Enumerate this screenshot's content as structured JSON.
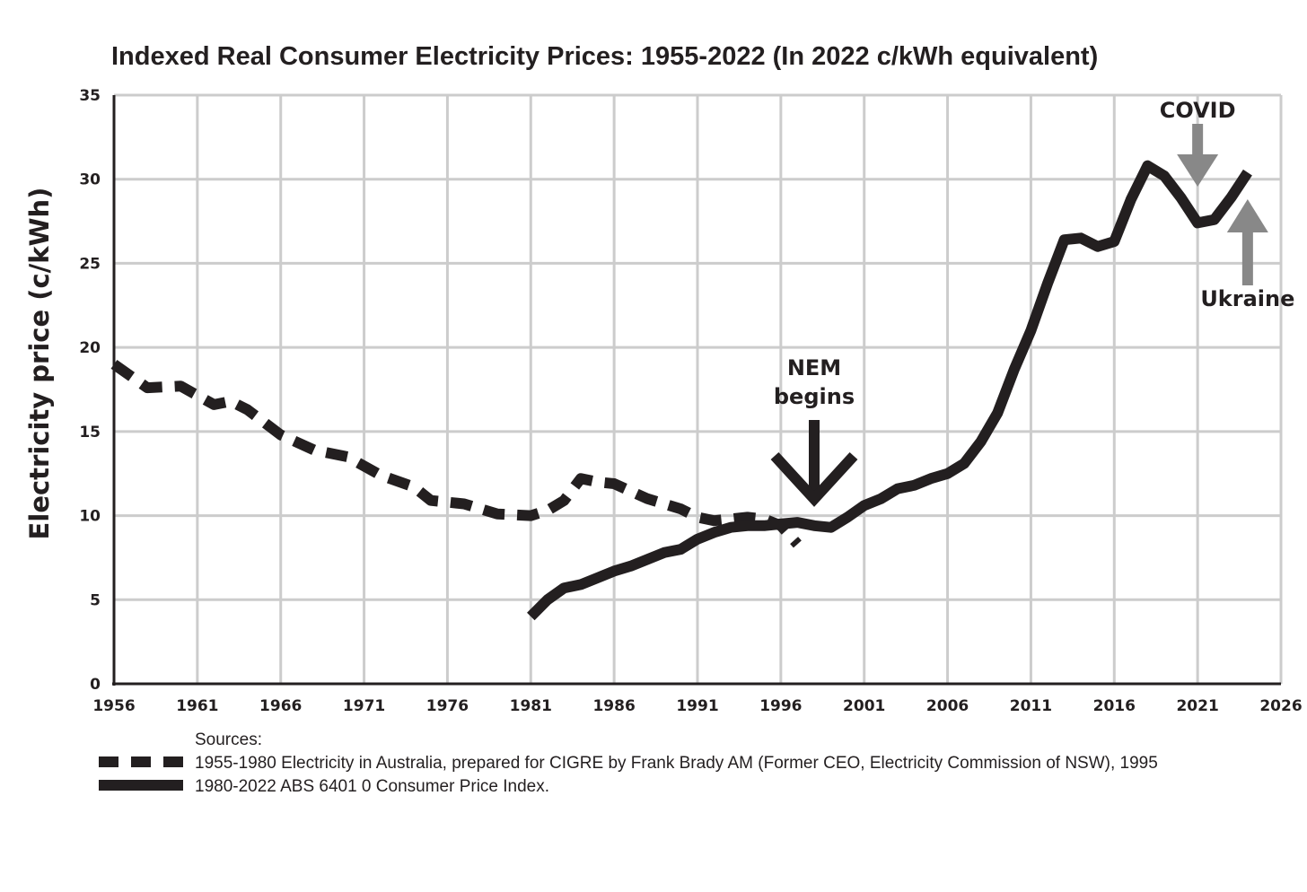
{
  "chart_data": {
    "type": "line",
    "title": "Indexed Real Consumer Electricity Prices: 1955-2022 (In 2022 c/kWh equivalent)",
    "ylabel": "Electricity price (c/kWh)",
    "xlabel": "",
    "xlim": [
      1956,
      2026
    ],
    "ylim": [
      0,
      35
    ],
    "x_ticks": [
      1956,
      1961,
      1966,
      1971,
      1976,
      1981,
      1986,
      1991,
      1996,
      2001,
      2006,
      2011,
      2016,
      2021,
      2026
    ],
    "y_ticks": [
      0,
      5,
      10,
      15,
      20,
      25,
      30,
      35
    ],
    "grid": true,
    "colors": {
      "line": "#231f20",
      "grid": "#cccccc",
      "arrow_gray": "#888888"
    },
    "series": [
      {
        "style": "dashed",
        "x": [
          1956,
          1958,
          1960,
          1962,
          1963,
          1964,
          1966,
          1968,
          1970,
          1972,
          1974,
          1975,
          1977,
          1979,
          1981,
          1982,
          1983,
          1984,
          1985,
          1986,
          1988,
          1990,
          1991,
          1992,
          1994,
          1995,
          1996,
          1997
        ],
        "y": [
          19,
          17.6,
          17.7,
          16.6,
          16.8,
          16.3,
          14.8,
          13.9,
          13.5,
          12.4,
          11.7,
          10.9,
          10.7,
          10.1,
          10.0,
          10.3,
          10.9,
          12.2,
          12.0,
          11.9,
          11.0,
          10.4,
          9.9,
          9.7,
          9.9,
          9.8,
          9.4,
          8.3
        ]
      },
      {
        "style": "solid",
        "x": [
          1981,
          1982,
          1983,
          1984,
          1985,
          1986,
          1987,
          1988,
          1989,
          1990,
          1991,
          1992,
          1993,
          1994,
          1995,
          1996,
          1997,
          1998,
          1999,
          2000,
          2001,
          2002,
          2003,
          2004,
          2005,
          2006,
          2007,
          2008,
          2009,
          2010,
          2011,
          2012,
          2013,
          2014,
          2015,
          2016,
          2017,
          2018,
          2019,
          2020,
          2021,
          2022,
          2023,
          2024
        ],
        "y": [
          4.0,
          5.0,
          5.7,
          5.9,
          6.3,
          6.7,
          7.0,
          7.4,
          7.8,
          8.0,
          8.6,
          9.0,
          9.3,
          9.4,
          9.4,
          9.5,
          9.6,
          9.4,
          9.3,
          9.9,
          10.6,
          11.0,
          11.6,
          11.8,
          12.2,
          12.5,
          13.1,
          14.4,
          16.1,
          18.7,
          21.0,
          23.8,
          26.4,
          26.5,
          26.0,
          26.3,
          28.8,
          30.8,
          30.2,
          28.9,
          27.4,
          27.6,
          28.9,
          30.4
        ]
      }
    ],
    "annotations": {
      "nem": {
        "line1": "NEM",
        "line2": "begins",
        "year": 1998
      },
      "covid": {
        "label": "COVID",
        "year": 2021
      },
      "ukraine": {
        "label": "Ukraine",
        "year": 2024
      }
    },
    "legend": {
      "heading": "Sources:",
      "entries": [
        {
          "style": "dashed",
          "text": "1955-1980 Electricity in Australia, prepared for CIGRE by Frank Brady AM (Former CEO, Electricity Commission of NSW), 1995"
        },
        {
          "style": "solid",
          "text": "1980-2022 ABS 6401 0 Consumer Price Index."
        }
      ]
    }
  }
}
